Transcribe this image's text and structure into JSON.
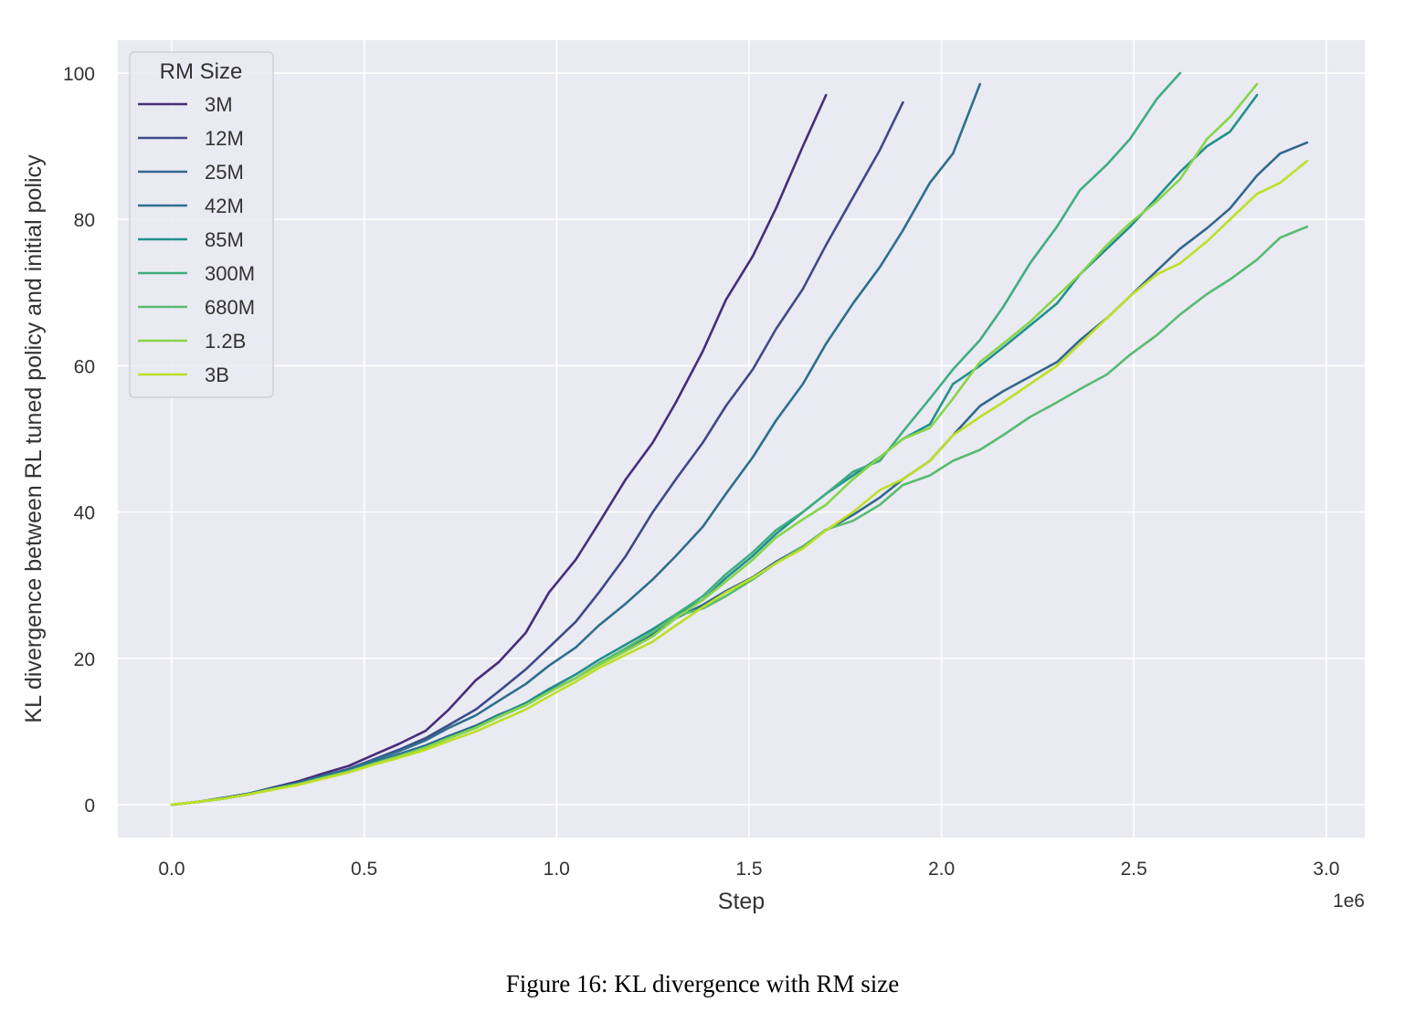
{
  "caption": "Figure 16: KL divergence with RM size",
  "colors": {
    "plot_background": "#eaeaf2",
    "grid": "#ffffff"
  },
  "chart_data": {
    "type": "line",
    "xlabel": "Step",
    "ylabel": "KL divergence between RL tuned policy and initial policy",
    "x_offset_label": "1e6",
    "xlim": [
      -0.14,
      3.1
    ],
    "ylim": [
      -4.5,
      104.5
    ],
    "x_ticks": [
      0.0,
      0.5,
      1.0,
      1.5,
      2.0,
      2.5,
      3.0
    ],
    "x_tick_labels": [
      "0.0",
      "0.5",
      "1.0",
      "1.5",
      "2.0",
      "2.5",
      "3.0"
    ],
    "y_ticks": [
      0,
      20,
      40,
      60,
      80,
      100
    ],
    "y_tick_labels": [
      "0",
      "20",
      "40",
      "60",
      "80",
      "100"
    ],
    "grid": true,
    "legend": {
      "title": "RM Size",
      "placement": "top-left"
    },
    "series": [
      {
        "name": "3M",
        "color": "#472d7b",
        "x": [
          0,
          0.07,
          0.13,
          0.2,
          0.26,
          0.33,
          0.39,
          0.46,
          0.52,
          0.59,
          0.66,
          0.72,
          0.79,
          0.85,
          0.92,
          0.98,
          1.05,
          1.11,
          1.18,
          1.25,
          1.31,
          1.38,
          1.44,
          1.51,
          1.57,
          1.64,
          1.7
        ],
        "y": [
          0,
          0.4,
          0.9,
          1.5,
          2.3,
          3.2,
          4.2,
          5.3,
          6.7,
          8.3,
          10.1,
          13.0,
          17.0,
          19.5,
          23.5,
          29.0,
          33.5,
          38.5,
          44.5,
          49.5,
          55.0,
          62.0,
          69.0,
          75.0,
          81.5,
          90.0,
          97.0
        ]
      },
      {
        "name": "12M",
        "color": "#3e4a89",
        "x": [
          0,
          0.07,
          0.13,
          0.2,
          0.26,
          0.33,
          0.39,
          0.46,
          0.52,
          0.59,
          0.66,
          0.72,
          0.79,
          0.85,
          0.92,
          0.98,
          1.05,
          1.11,
          1.18,
          1.25,
          1.31,
          1.38,
          1.44,
          1.51,
          1.57,
          1.64,
          1.7,
          1.77,
          1.84,
          1.9
        ],
        "y": [
          0,
          0.4,
          0.9,
          1.5,
          2.2,
          3.0,
          3.9,
          4.9,
          6.1,
          7.5,
          9.1,
          10.9,
          13.0,
          15.5,
          18.5,
          21.5,
          25.0,
          29.0,
          34.0,
          40.0,
          44.5,
          49.5,
          54.5,
          59.5,
          65.0,
          70.5,
          76.5,
          83.0,
          89.5,
          96.0
        ]
      },
      {
        "name": "25M",
        "color": "#31688e",
        "x": [
          0,
          0.07,
          0.13,
          0.2,
          0.26,
          0.33,
          0.39,
          0.46,
          0.52,
          0.59,
          0.66,
          0.72,
          0.79,
          0.85,
          0.92,
          0.98,
          1.05,
          1.11,
          1.18,
          1.25,
          1.31,
          1.38,
          1.44,
          1.51,
          1.57,
          1.64,
          1.7,
          1.77,
          1.84,
          1.9,
          1.97,
          2.03,
          2.1,
          2.16,
          2.23,
          2.3,
          2.36,
          2.43,
          2.49,
          2.56,
          2.62,
          2.69,
          2.75,
          2.82,
          2.88,
          2.95
        ],
        "y": [
          0,
          0.4,
          0.8,
          1.4,
          2.1,
          2.9,
          3.7,
          4.7,
          5.7,
          6.9,
          8.1,
          9.4,
          10.8,
          12.3,
          13.8,
          15.5,
          17.3,
          19.2,
          21.2,
          23.3,
          25.5,
          27.3,
          29.2,
          31.1,
          33.2,
          35.3,
          37.5,
          39.6,
          42.0,
          44.5,
          47.0,
          50.5,
          54.5,
          56.5,
          58.5,
          60.5,
          63.5,
          66.5,
          69.5,
          73.0,
          76.0,
          78.8,
          81.5,
          86.0,
          89.0,
          90.5
        ]
      },
      {
        "name": "42M",
        "color": "#2e6f8e",
        "x": [
          0,
          0.07,
          0.13,
          0.2,
          0.26,
          0.33,
          0.39,
          0.46,
          0.52,
          0.59,
          0.66,
          0.72,
          0.79,
          0.85,
          0.92,
          0.98,
          1.05,
          1.11,
          1.18,
          1.25,
          1.31,
          1.38,
          1.44,
          1.51,
          1.57,
          1.64,
          1.7,
          1.77,
          1.84,
          1.9,
          1.97,
          2.03,
          2.1
        ],
        "y": [
          0,
          0.4,
          0.9,
          1.5,
          2.2,
          3.0,
          3.9,
          4.8,
          6.0,
          7.3,
          8.8,
          10.5,
          12.2,
          14.2,
          16.5,
          19.0,
          21.5,
          24.5,
          27.5,
          30.8,
          34.0,
          38.0,
          42.5,
          47.5,
          52.5,
          57.5,
          63.0,
          68.5,
          73.5,
          78.5,
          85.0,
          89.0,
          98.5
        ]
      },
      {
        "name": "85M",
        "color": "#21908d",
        "x": [
          0,
          0.07,
          0.13,
          0.2,
          0.26,
          0.33,
          0.39,
          0.46,
          0.52,
          0.59,
          0.66,
          0.72,
          0.79,
          0.85,
          0.92,
          0.98,
          1.05,
          1.11,
          1.18,
          1.25,
          1.31,
          1.38,
          1.44,
          1.51,
          1.57,
          1.64,
          1.7,
          1.77,
          1.84,
          1.9,
          1.97,
          2.03,
          2.1,
          2.16,
          2.23,
          2.3,
          2.36,
          2.43,
          2.49,
          2.56,
          2.62,
          2.69,
          2.75,
          2.82
        ],
        "y": [
          0,
          0.4,
          0.8,
          1.4,
          2.1,
          2.8,
          3.7,
          4.6,
          5.6,
          6.7,
          7.9,
          9.2,
          10.6,
          12.2,
          13.9,
          15.8,
          17.8,
          19.8,
          21.9,
          24.0,
          26.0,
          28.0,
          31.0,
          34.0,
          37.0,
          40.0,
          42.5,
          45.0,
          47.5,
          50.0,
          52.0,
          57.5,
          60.0,
          62.5,
          65.5,
          68.5,
          72.5,
          76.0,
          79.0,
          83.0,
          86.5,
          90.0,
          92.0,
          97.0
        ]
      },
      {
        "name": "300M",
        "color": "#3fae7f",
        "x": [
          0,
          0.07,
          0.13,
          0.2,
          0.26,
          0.33,
          0.39,
          0.46,
          0.52,
          0.59,
          0.66,
          0.72,
          0.79,
          0.85,
          0.92,
          0.98,
          1.05,
          1.11,
          1.18,
          1.25,
          1.31,
          1.38,
          1.44,
          1.51,
          1.57,
          1.64,
          1.7,
          1.77,
          1.84,
          1.9,
          1.97,
          2.03,
          2.1,
          2.16,
          2.23,
          2.3,
          2.36,
          2.43,
          2.49,
          2.56,
          2.62
        ],
        "y": [
          0,
          0.4,
          0.8,
          1.4,
          2.1,
          2.8,
          3.6,
          4.5,
          5.5,
          6.6,
          7.8,
          9.1,
          10.5,
          12.0,
          13.6,
          15.4,
          17.3,
          19.3,
          21.4,
          23.6,
          26.0,
          28.5,
          31.5,
          34.5,
          37.5,
          40.0,
          42.5,
          45.5,
          47.0,
          51.0,
          55.5,
          59.5,
          63.5,
          68.0,
          74.0,
          79.0,
          84.0,
          87.5,
          91.0,
          96.5,
          100.0
        ]
      },
      {
        "name": "680M",
        "color": "#58bb72",
        "x": [
          0,
          0.07,
          0.13,
          0.2,
          0.26,
          0.33,
          0.39,
          0.46,
          0.52,
          0.59,
          0.66,
          0.72,
          0.79,
          0.85,
          0.92,
          0.98,
          1.05,
          1.11,
          1.18,
          1.25,
          1.31,
          1.38,
          1.44,
          1.51,
          1.57,
          1.64,
          1.7,
          1.77,
          1.84,
          1.9,
          1.97,
          2.03,
          2.1,
          2.16,
          2.23,
          2.3,
          2.36,
          2.43,
          2.49,
          2.56,
          2.62,
          2.69,
          2.75,
          2.82,
          2.88,
          2.95
        ],
        "y": [
          0,
          0.4,
          0.8,
          1.4,
          2.1,
          2.8,
          3.6,
          4.5,
          5.5,
          6.6,
          7.8,
          9.1,
          10.5,
          12.0,
          13.6,
          15.4,
          17.3,
          19.3,
          21.4,
          23.6,
          25.8,
          26.8,
          28.5,
          30.8,
          33.0,
          35.3,
          37.6,
          38.8,
          41.0,
          43.7,
          45.0,
          47.0,
          48.5,
          50.5,
          53.0,
          55.0,
          56.8,
          58.8,
          61.5,
          64.2,
          67.0,
          69.8,
          71.8,
          74.5,
          77.5,
          79.0
        ]
      },
      {
        "name": "1.2B",
        "color": "#86d549",
        "x": [
          0,
          0.07,
          0.13,
          0.2,
          0.26,
          0.33,
          0.39,
          0.46,
          0.52,
          0.59,
          0.66,
          0.72,
          0.79,
          0.85,
          0.92,
          0.98,
          1.05,
          1.11,
          1.18,
          1.25,
          1.31,
          1.38,
          1.44,
          1.51,
          1.57,
          1.64,
          1.7,
          1.77,
          1.84,
          1.9,
          1.97,
          2.03,
          2.1,
          2.16,
          2.23,
          2.3,
          2.36,
          2.43,
          2.49,
          2.56,
          2.62,
          2.69,
          2.75,
          2.82
        ],
        "y": [
          0,
          0.4,
          0.8,
          1.4,
          2.1,
          2.8,
          3.6,
          4.5,
          5.5,
          6.6,
          7.8,
          9.1,
          10.5,
          12.0,
          13.6,
          15.4,
          17.3,
          19.1,
          21.0,
          23.0,
          25.5,
          28.0,
          30.5,
          33.5,
          36.5,
          39.0,
          41.0,
          44.5,
          47.5,
          50.0,
          51.5,
          55.5,
          60.5,
          63.0,
          66.0,
          69.5,
          72.5,
          76.5,
          79.5,
          82.5,
          85.5,
          91.0,
          94.0,
          98.5
        ]
      },
      {
        "name": "3B",
        "color": "#bddf26",
        "x": [
          0,
          0.07,
          0.13,
          0.2,
          0.26,
          0.33,
          0.39,
          0.46,
          0.52,
          0.59,
          0.66,
          0.72,
          0.79,
          0.85,
          0.92,
          0.98,
          1.05,
          1.11,
          1.18,
          1.25,
          1.31,
          1.38,
          1.44,
          1.51,
          1.57,
          1.64,
          1.7,
          1.77,
          1.84,
          1.9,
          1.97,
          2.03,
          2.1,
          2.16,
          2.23,
          2.3,
          2.36,
          2.43,
          2.49,
          2.56,
          2.62,
          2.69,
          2.75,
          2.82,
          2.88,
          2.95
        ],
        "y": [
          0,
          0.4,
          0.8,
          1.4,
          2.0,
          2.7,
          3.5,
          4.4,
          5.4,
          6.4,
          7.5,
          8.7,
          10.0,
          11.4,
          13.0,
          14.8,
          16.8,
          18.7,
          20.5,
          22.3,
          24.5,
          27.0,
          29.0,
          31.0,
          33.0,
          35.0,
          37.5,
          40.0,
          43.0,
          44.5,
          47.0,
          50.5,
          53.0,
          55.0,
          57.5,
          60.0,
          63.0,
          66.5,
          69.5,
          72.5,
          74.0,
          77.0,
          80.0,
          83.5,
          85.0,
          88.0
        ]
      }
    ]
  }
}
